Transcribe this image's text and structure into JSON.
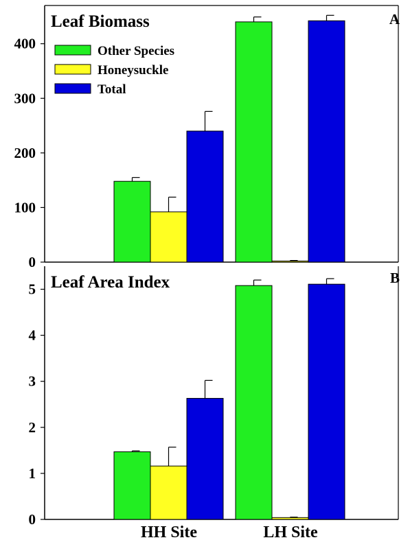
{
  "colors": {
    "Other Species": "#22ee22",
    "Honeysuckle": "#ffff22",
    "Total": "#0000dd"
  },
  "chart_data": [
    {
      "type": "bar",
      "title": "Leaf Biomass",
      "panel_label": "A",
      "categories": [
        "HH Site",
        "LH Site"
      ],
      "series": [
        {
          "name": "Other Species",
          "values": [
            148,
            440
          ],
          "errors": [
            7,
            9
          ]
        },
        {
          "name": "Honeysuckle",
          "values": [
            92,
            2
          ],
          "errors": [
            27,
            1
          ]
        },
        {
          "name": "Total",
          "values": [
            240,
            442
          ],
          "errors": [
            36,
            10
          ]
        }
      ],
      "ylim": [
        0,
        470
      ],
      "yticks": [
        0,
        100,
        200,
        300,
        400
      ],
      "legend": "top-left",
      "grid": false
    },
    {
      "type": "bar",
      "title": "Leaf Area Index",
      "panel_label": "B",
      "categories": [
        "HH Site",
        "LH Site"
      ],
      "series": [
        {
          "name": "Other Species",
          "values": [
            1.47,
            5.08
          ],
          "errors": [
            0.02,
            0.12
          ]
        },
        {
          "name": "Honeysuckle",
          "values": [
            1.16,
            0.04
          ],
          "errors": [
            0.41,
            0.01
          ]
        },
        {
          "name": "Total",
          "values": [
            2.63,
            5.11
          ],
          "errors": [
            0.39,
            0.12
          ]
        }
      ],
      "ylim": [
        0,
        5.5
      ],
      "yticks": [
        0,
        1,
        2,
        3,
        4,
        5
      ],
      "legend": "none",
      "grid": false
    }
  ]
}
